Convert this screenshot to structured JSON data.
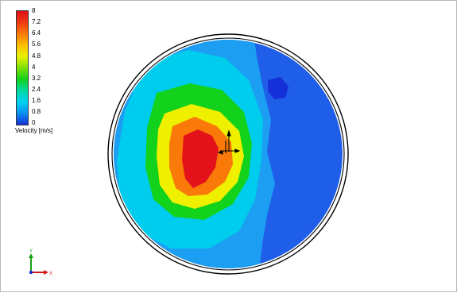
{
  "legend": {
    "title": "Velocity [m/s]",
    "ticks": [
      "8",
      "7.2",
      "6.4",
      "5.6",
      "4.8",
      "4",
      "3.2",
      "2.4",
      "1.6",
      "0.8",
      "0"
    ]
  },
  "triad": {
    "y_label": "Y",
    "x_label": "X"
  },
  "colors": {
    "red": "#e3121b",
    "orange": "#f97a08",
    "yellow": "#eef000",
    "green": "#12d21c",
    "cyan": "#00cdee",
    "light_blue": "#1c9ef2",
    "blue": "#1e5ee8",
    "dark_blue": "#1530d8"
  }
}
